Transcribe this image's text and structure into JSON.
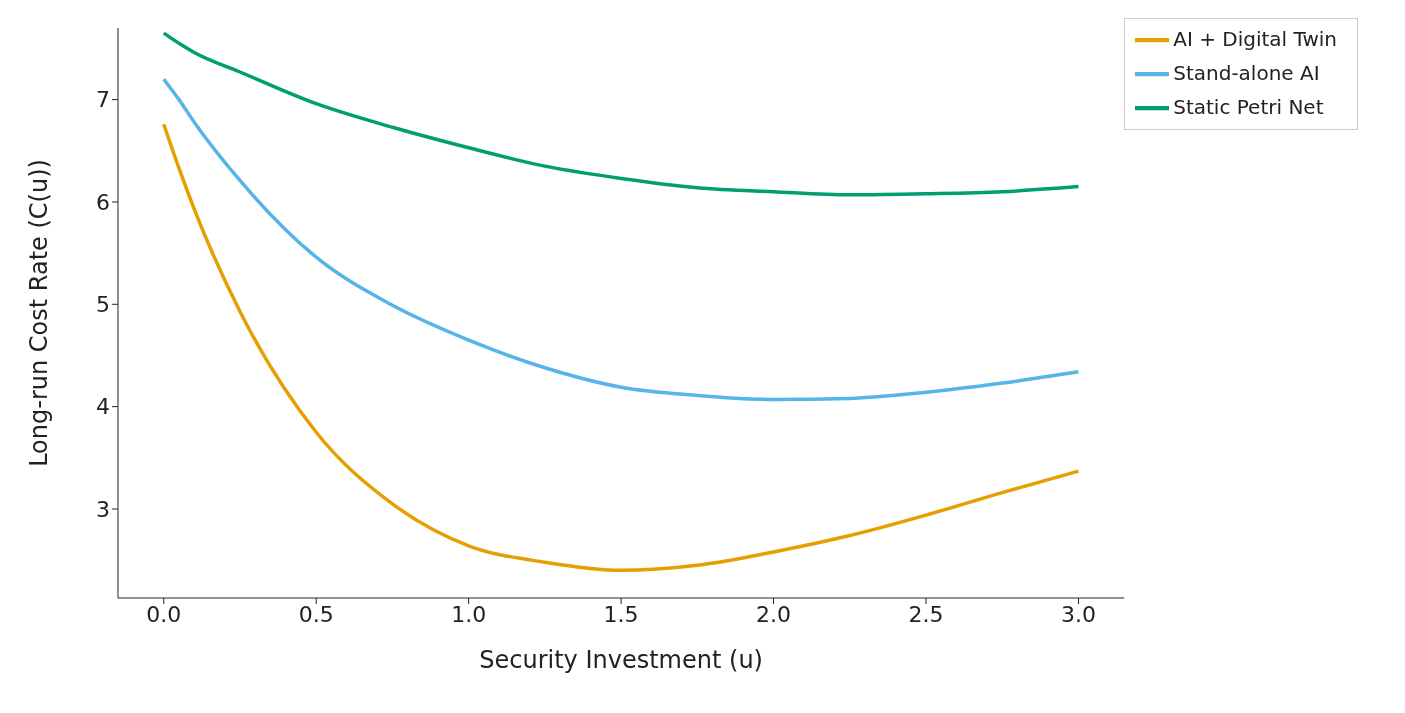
{
  "chart_data": {
    "type": "line",
    "xlabel": "Security Investment (u)",
    "ylabel": "Long-run Cost Rate (C(u))",
    "x": [
      0,
      0.05,
      0.1,
      0.25,
      0.5,
      0.75,
      1,
      1.25,
      1.5,
      1.75,
      2,
      2.25,
      2.5,
      2.75,
      3
    ],
    "series": [
      {
        "name": "AI + Digital Twin",
        "color": "#e69f00",
        "values": [
          6.76,
          6.33,
          5.93,
          4.93,
          3.75,
          3.05,
          2.64,
          2.48,
          2.4,
          2.45,
          2.58,
          2.74,
          2.94,
          3.16,
          3.37
        ]
      },
      {
        "name": "Stand-alone AI",
        "color": "#56b4e9",
        "values": [
          7.2,
          7.0,
          6.78,
          6.21,
          5.46,
          4.99,
          4.65,
          4.38,
          4.19,
          4.11,
          4.07,
          4.08,
          4.14,
          4.23,
          4.34
        ]
      },
      {
        "name": "Static Petri Net",
        "color": "#009e73",
        "values": [
          7.65,
          7.55,
          7.46,
          7.27,
          6.96,
          6.73,
          6.53,
          6.35,
          6.23,
          6.14,
          6.1,
          6.07,
          6.08,
          6.1,
          6.15
        ]
      }
    ],
    "xlim": [
      -0.15,
      3.15
    ],
    "ylim": [
      2.13,
      7.7
    ],
    "xticks": [
      {
        "value": 0,
        "label": "0.0"
      },
      {
        "value": 0.5,
        "label": "0.5"
      },
      {
        "value": 1,
        "label": "1.0"
      },
      {
        "value": 1.5,
        "label": "1.5"
      },
      {
        "value": 2,
        "label": "2.0"
      },
      {
        "value": 2.5,
        "label": "2.5"
      },
      {
        "value": 3,
        "label": "3.0"
      }
    ],
    "yticks": [
      3,
      4,
      5,
      6,
      7
    ],
    "grid": false,
    "legend": "top right",
    "marker": "none",
    "line_style": "solid"
  }
}
